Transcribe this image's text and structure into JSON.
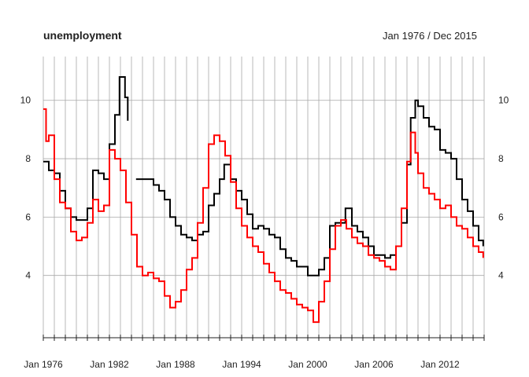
{
  "chart_data": {
    "type": "line",
    "title": "unemployment",
    "range_label": "Jan 1976 / Dec 2015",
    "x_range": [
      "1976-01",
      "2015-12"
    ],
    "ylim": [
      2,
      11.5
    ],
    "grid": true,
    "y_axis_sides": [
      "left",
      "right"
    ],
    "x_tick_labels": [
      "Jan 1976",
      "Jan 1982",
      "Jan 1988",
      "Jan 1994",
      "Jan 2000",
      "Jan 2006",
      "Jan 2012"
    ],
    "y_tick_labels": [
      4,
      6,
      8,
      10
    ],
    "colors": {
      "series_1": "#000000",
      "series_2": "#ff0000",
      "grid": "#a8a8a8"
    },
    "series": [
      {
        "color": "#000000",
        "points": [
          [
            "1976-01",
            7.9
          ],
          [
            "1976-07",
            7.6
          ],
          [
            "1977-01",
            7.5
          ],
          [
            "1977-07",
            6.9
          ],
          [
            "1978-01",
            6.3
          ],
          [
            "1978-07",
            6.0
          ],
          [
            "1979-01",
            5.9
          ],
          [
            "1979-07",
            5.9
          ],
          [
            "1980-01",
            6.3
          ],
          [
            "1980-07",
            7.6
          ],
          [
            "1981-01",
            7.5
          ],
          [
            "1981-07",
            7.3
          ],
          [
            "1982-01",
            8.5
          ],
          [
            "1982-07",
            9.5
          ],
          [
            "1982-12",
            10.8
          ],
          [
            "1983-06",
            10.1
          ],
          [
            "1983-09",
            9.3
          ],
          null,
          [
            "1984-06",
            7.3
          ],
          [
            "1985-06",
            7.3
          ],
          [
            "1986-01",
            7.1
          ],
          [
            "1986-07",
            6.9
          ],
          [
            "1987-01",
            6.6
          ],
          [
            "1987-07",
            6.0
          ],
          [
            "1988-01",
            5.7
          ],
          [
            "1988-07",
            5.4
          ],
          [
            "1989-01",
            5.3
          ],
          [
            "1989-07",
            5.2
          ],
          [
            "1990-01",
            5.4
          ],
          [
            "1990-07",
            5.5
          ],
          [
            "1991-01",
            6.4
          ],
          [
            "1991-07",
            6.8
          ],
          [
            "1992-01",
            7.3
          ],
          [
            "1992-06",
            7.8
          ],
          [
            "1993-01",
            7.3
          ],
          [
            "1993-07",
            6.9
          ],
          [
            "1994-01",
            6.6
          ],
          [
            "1994-07",
            6.1
          ],
          [
            "1995-01",
            5.6
          ],
          [
            "1995-07",
            5.7
          ],
          [
            "1996-01",
            5.6
          ],
          [
            "1996-07",
            5.4
          ],
          [
            "1997-01",
            5.3
          ],
          [
            "1997-07",
            4.9
          ],
          [
            "1998-01",
            4.6
          ],
          [
            "1998-07",
            4.5
          ],
          [
            "1999-01",
            4.3
          ],
          [
            "1999-07",
            4.3
          ],
          [
            "2000-01",
            4.0
          ],
          [
            "2000-07",
            4.0
          ],
          [
            "2001-01",
            4.2
          ],
          [
            "2001-07",
            4.6
          ],
          [
            "2002-01",
            5.7
          ],
          [
            "2002-07",
            5.8
          ],
          [
            "2003-01",
            5.8
          ],
          [
            "2003-06",
            6.3
          ],
          [
            "2004-01",
            5.7
          ],
          [
            "2004-07",
            5.5
          ],
          [
            "2005-01",
            5.3
          ],
          [
            "2005-07",
            5.0
          ],
          [
            "2006-01",
            4.7
          ],
          [
            "2006-07",
            4.7
          ],
          [
            "2007-01",
            4.6
          ],
          [
            "2007-07",
            4.7
          ],
          [
            "2008-01",
            5.0
          ],
          [
            "2008-07",
            5.8
          ],
          [
            "2009-01",
            7.8
          ],
          [
            "2009-05",
            9.4
          ],
          [
            "2009-10",
            10.0
          ],
          [
            "2010-01",
            9.8
          ],
          [
            "2010-07",
            9.4
          ],
          [
            "2011-01",
            9.1
          ],
          [
            "2011-07",
            9.0
          ],
          [
            "2012-01",
            8.3
          ],
          [
            "2012-07",
            8.2
          ],
          [
            "2013-01",
            8.0
          ],
          [
            "2013-07",
            7.3
          ],
          [
            "2014-01",
            6.6
          ],
          [
            "2014-07",
            6.2
          ],
          [
            "2015-01",
            5.7
          ],
          [
            "2015-07",
            5.2
          ],
          [
            "2015-12",
            5.0
          ]
        ]
      },
      {
        "color": "#ff0000",
        "points": [
          [
            "1976-01",
            9.7
          ],
          [
            "1976-04",
            8.6
          ],
          [
            "1976-07",
            8.8
          ],
          [
            "1977-01",
            7.3
          ],
          [
            "1977-07",
            6.5
          ],
          [
            "1978-01",
            6.3
          ],
          [
            "1978-07",
            5.5
          ],
          [
            "1979-01",
            5.2
          ],
          [
            "1979-07",
            5.3
          ],
          [
            "1980-01",
            5.8
          ],
          [
            "1980-07",
            6.6
          ],
          [
            "1981-01",
            6.2
          ],
          [
            "1981-07",
            6.4
          ],
          [
            "1982-01",
            8.3
          ],
          [
            "1982-07",
            8.0
          ],
          [
            "1983-01",
            7.6
          ],
          [
            "1983-07",
            6.5
          ],
          [
            "1984-01",
            5.4
          ],
          [
            "1984-07",
            4.3
          ],
          [
            "1985-01",
            4.0
          ],
          [
            "1985-07",
            4.1
          ],
          [
            "1986-01",
            3.9
          ],
          [
            "1986-07",
            3.8
          ],
          [
            "1987-01",
            3.3
          ],
          [
            "1987-07",
            2.9
          ],
          [
            "1988-01",
            3.1
          ],
          [
            "1988-07",
            3.5
          ],
          [
            "1989-01",
            4.2
          ],
          [
            "1989-07",
            4.6
          ],
          [
            "1990-01",
            5.8
          ],
          [
            "1990-07",
            7.0
          ],
          [
            "1991-01",
            8.5
          ],
          [
            "1991-07",
            8.8
          ],
          [
            "1992-01",
            8.6
          ],
          [
            "1992-07",
            8.1
          ],
          [
            "1993-01",
            7.2
          ],
          [
            "1993-07",
            6.3
          ],
          [
            "1994-01",
            5.7
          ],
          [
            "1994-07",
            5.3
          ],
          [
            "1995-01",
            5.0
          ],
          [
            "1995-07",
            4.8
          ],
          [
            "1996-01",
            4.4
          ],
          [
            "1996-07",
            4.1
          ],
          [
            "1997-01",
            3.8
          ],
          [
            "1997-07",
            3.5
          ],
          [
            "1998-01",
            3.4
          ],
          [
            "1998-07",
            3.2
          ],
          [
            "1999-01",
            3.0
          ],
          [
            "1999-07",
            2.9
          ],
          [
            "2000-01",
            2.8
          ],
          [
            "2000-07",
            2.4
          ],
          [
            "2001-01",
            3.1
          ],
          [
            "2001-07",
            3.8
          ],
          [
            "2002-01",
            4.9
          ],
          [
            "2002-07",
            5.7
          ],
          [
            "2003-01",
            5.9
          ],
          [
            "2003-07",
            5.6
          ],
          [
            "2004-01",
            5.3
          ],
          [
            "2004-07",
            5.1
          ],
          [
            "2005-01",
            5.0
          ],
          [
            "2005-07",
            4.7
          ],
          [
            "2006-01",
            4.6
          ],
          [
            "2006-07",
            4.5
          ],
          [
            "2007-01",
            4.3
          ],
          [
            "2007-07",
            4.2
          ],
          [
            "2008-01",
            5.0
          ],
          [
            "2008-07",
            6.3
          ],
          [
            "2009-01",
            7.9
          ],
          [
            "2009-05",
            8.9
          ],
          [
            "2009-10",
            8.2
          ],
          [
            "2010-01",
            7.5
          ],
          [
            "2010-07",
            7.0
          ],
          [
            "2011-01",
            6.8
          ],
          [
            "2011-07",
            6.6
          ],
          [
            "2012-01",
            6.3
          ],
          [
            "2012-07",
            6.4
          ],
          [
            "2013-01",
            6.0
          ],
          [
            "2013-07",
            5.7
          ],
          [
            "2014-01",
            5.6
          ],
          [
            "2014-07",
            5.3
          ],
          [
            "2015-01",
            5.0
          ],
          [
            "2015-07",
            4.8
          ],
          [
            "2015-12",
            4.6
          ]
        ]
      }
    ]
  }
}
